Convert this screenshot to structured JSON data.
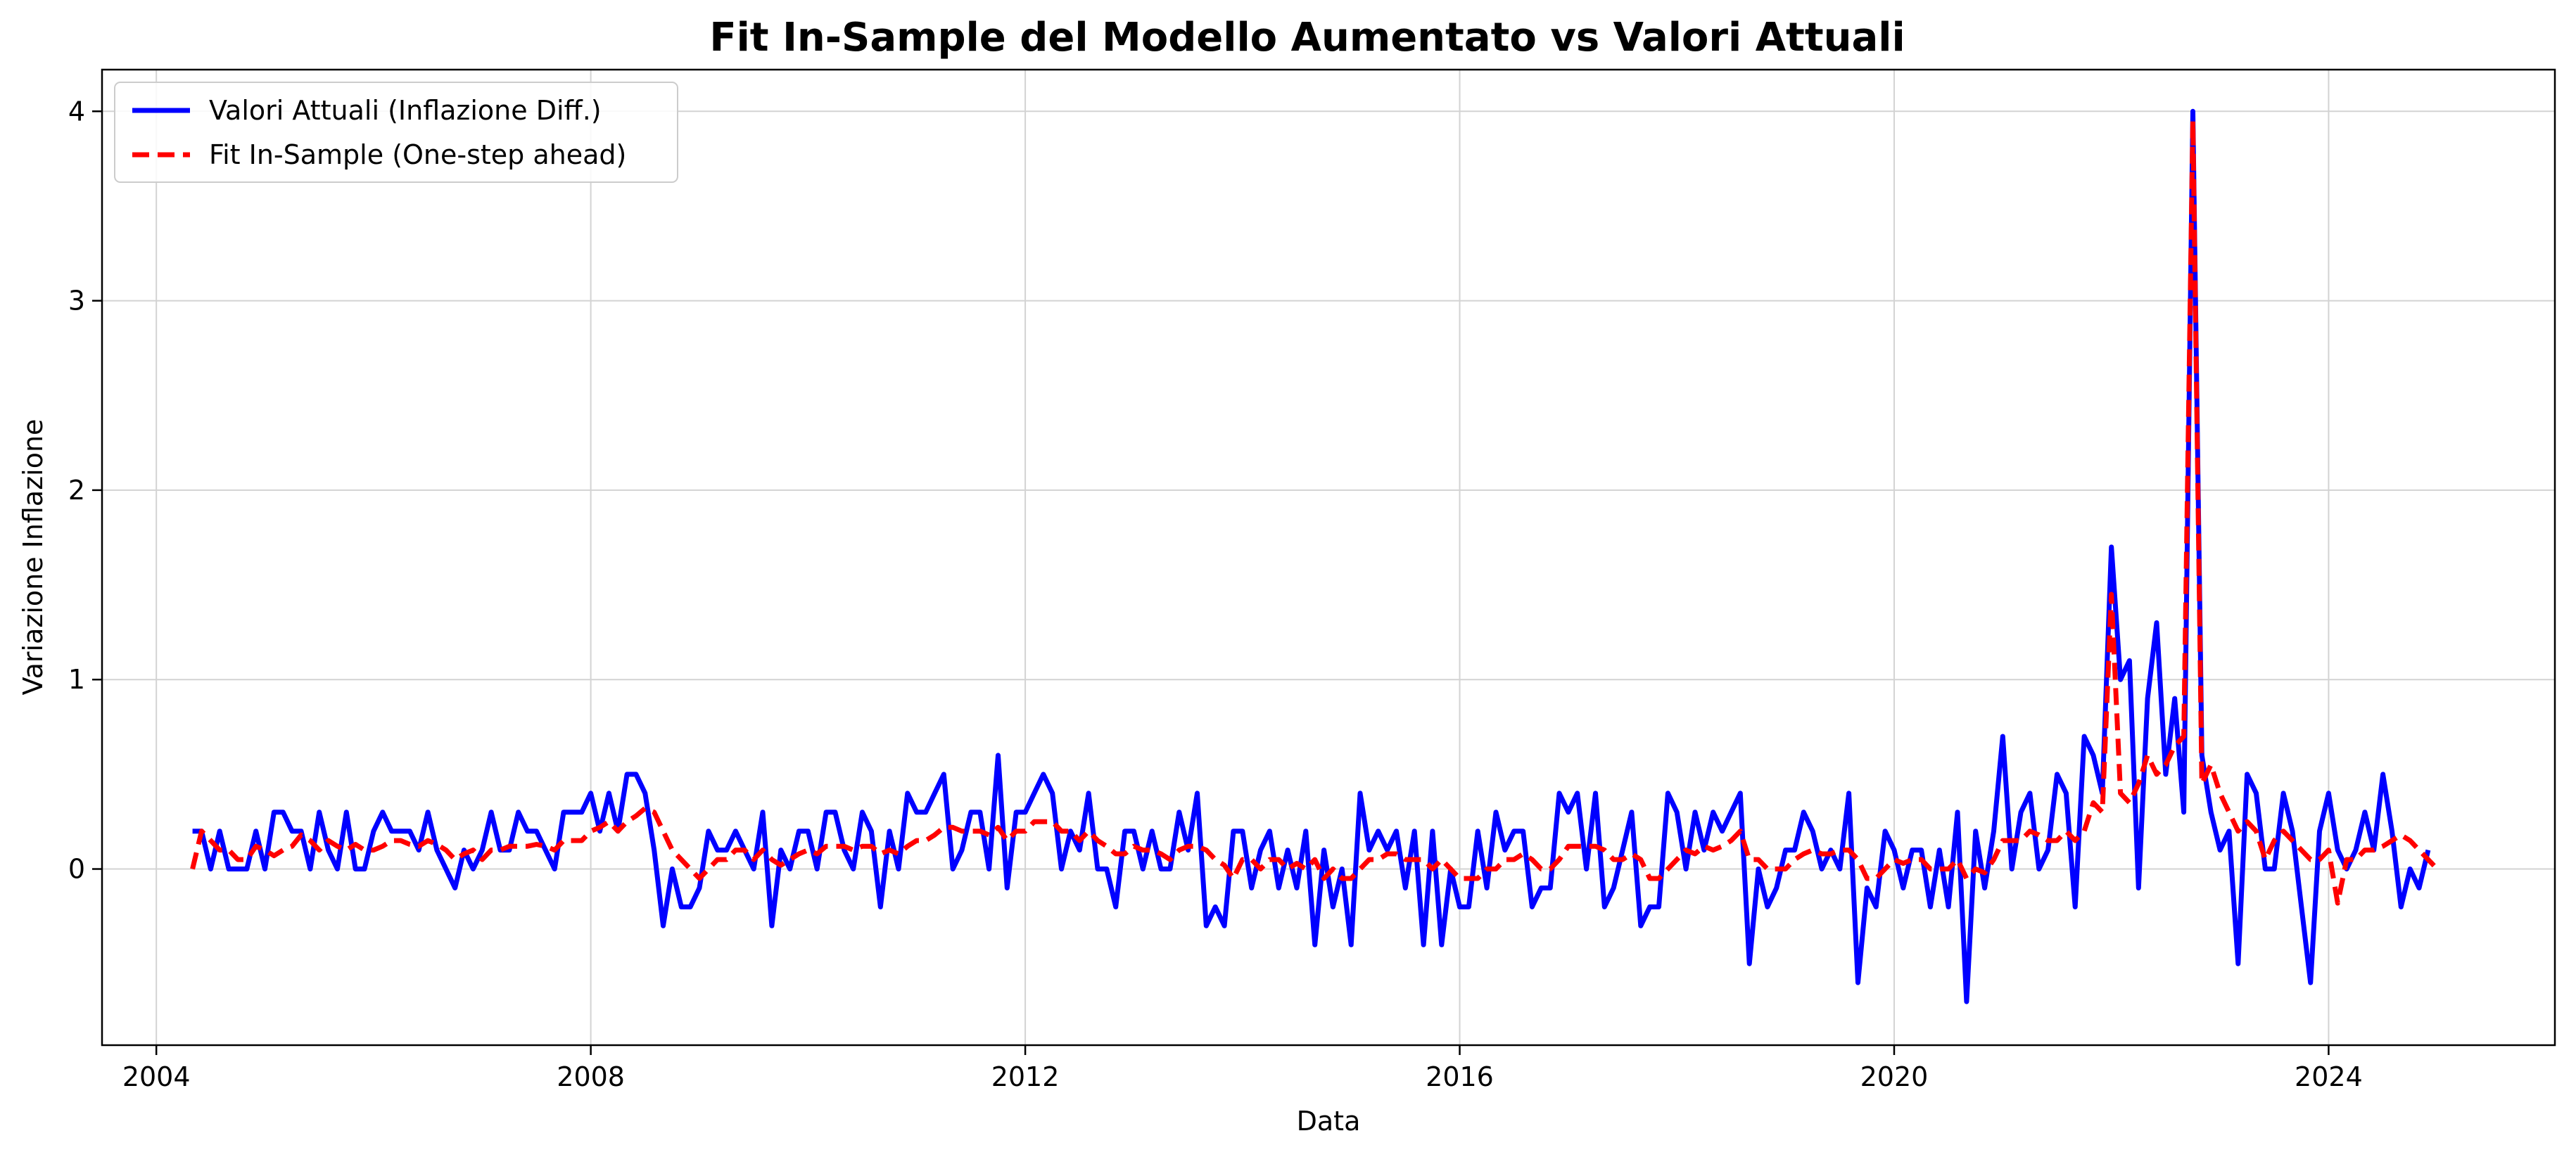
{
  "chart_data": {
    "type": "line",
    "title": "Fit In-Sample del Modello Aumentato vs Valori Attuali",
    "xlabel": "Data",
    "ylabel": "Variazione Inflazione",
    "x_ticks": [
      "2004",
      "2008",
      "2012",
      "2016",
      "2020",
      "2024"
    ],
    "y_ticks": [
      "0",
      "1",
      "2",
      "3",
      "4"
    ],
    "x_range": [
      "2003-07",
      "2026-02"
    ],
    "ylim": [
      -0.93,
      4.22
    ],
    "grid": true,
    "legend_position": "top-left",
    "x_start": "2004-05",
    "x_step": "month",
    "series": [
      {
        "name": "Valori Attuali (Inflazione Diff.)",
        "color": "#0000ff",
        "style": "solid",
        "values": [
          0.2,
          0.2,
          0.0,
          0.2,
          0.0,
          0.0,
          0.0,
          0.2,
          0.0,
          0.3,
          0.3,
          0.2,
          0.2,
          0.0,
          0.3,
          0.1,
          0.0,
          0.3,
          0.0,
          0.0,
          0.2,
          0.3,
          0.2,
          0.2,
          0.2,
          0.1,
          0.3,
          0.1,
          0.0,
          -0.1,
          0.1,
          0.0,
          0.1,
          0.3,
          0.1,
          0.1,
          0.3,
          0.2,
          0.2,
          0.1,
          0.0,
          0.3,
          0.3,
          0.3,
          0.4,
          0.2,
          0.4,
          0.2,
          0.5,
          0.5,
          0.4,
          0.1,
          -0.3,
          0.0,
          -0.2,
          -0.2,
          -0.1,
          0.2,
          0.1,
          0.1,
          0.2,
          0.1,
          0.0,
          0.3,
          -0.3,
          0.1,
          0.0,
          0.2,
          0.2,
          0.0,
          0.3,
          0.3,
          0.1,
          0.0,
          0.3,
          0.2,
          -0.2,
          0.2,
          0.0,
          0.4,
          0.3,
          0.3,
          0.4,
          0.5,
          0.0,
          0.1,
          0.3,
          0.3,
          0.0,
          0.6,
          -0.1,
          0.3,
          0.3,
          0.4,
          0.5,
          0.4,
          0.0,
          0.2,
          0.1,
          0.4,
          0.0,
          0.0,
          -0.2,
          0.2,
          0.2,
          0.0,
          0.2,
          0.0,
          0.0,
          0.3,
          0.1,
          0.4,
          -0.3,
          -0.2,
          -0.3,
          0.2,
          0.2,
          -0.1,
          0.1,
          0.2,
          -0.1,
          0.1,
          -0.1,
          0.2,
          -0.4,
          0.1,
          -0.2,
          0.0,
          -0.4,
          0.4,
          0.1,
          0.2,
          0.1,
          0.2,
          -0.1,
          0.2,
          -0.4,
          0.2,
          -0.4,
          0.0,
          -0.2,
          -0.2,
          0.2,
          -0.1,
          0.3,
          0.1,
          0.2,
          0.2,
          -0.2,
          -0.1,
          -0.1,
          0.4,
          0.3,
          0.4,
          0.0,
          0.4,
          -0.2,
          -0.1,
          0.1,
          0.3,
          -0.3,
          -0.2,
          -0.2,
          0.4,
          0.3,
          0.0,
          0.3,
          0.1,
          0.3,
          0.2,
          0.3,
          0.4,
          -0.5,
          0.0,
          -0.2,
          -0.1,
          0.1,
          0.1,
          0.3,
          0.2,
          0.0,
          0.1,
          0.0,
          0.4,
          -0.6,
          -0.1,
          -0.2,
          0.2,
          0.1,
          -0.1,
          0.1,
          0.1,
          -0.2,
          0.1,
          -0.2,
          0.3,
          -0.7,
          0.2,
          -0.1,
          0.2,
          0.7,
          0.0,
          0.3,
          0.4,
          0.0,
          0.1,
          0.5,
          0.4,
          -0.2,
          0.7,
          0.6,
          0.4,
          1.7,
          1.0,
          1.1,
          -0.1,
          0.9,
          1.3,
          0.5,
          0.9,
          0.3,
          4.0,
          0.6,
          0.3,
          0.1,
          0.2,
          -0.5,
          0.5,
          0.4,
          0.0,
          0.0,
          0.4,
          0.2,
          -0.2,
          -0.6,
          0.2,
          0.4,
          0.1,
          0.0,
          0.1,
          0.3,
          0.1,
          0.5,
          0.2,
          -0.2,
          0.0,
          -0.1,
          0.1
        ]
      },
      {
        "name": "Fit In-Sample (One-step ahead)",
        "color": "#ff0000",
        "style": "dashed",
        "values": [
          0.0,
          0.2,
          0.15,
          0.1,
          0.1,
          0.05,
          0.05,
          0.12,
          0.1,
          0.07,
          0.1,
          0.12,
          0.18,
          0.15,
          0.1,
          0.15,
          0.12,
          0.1,
          0.13,
          0.1,
          0.1,
          0.12,
          0.15,
          0.15,
          0.13,
          0.12,
          0.15,
          0.13,
          0.1,
          0.05,
          0.08,
          0.1,
          0.05,
          0.1,
          0.1,
          0.12,
          0.12,
          0.12,
          0.13,
          0.12,
          0.1,
          0.15,
          0.15,
          0.15,
          0.2,
          0.22,
          0.25,
          0.2,
          0.25,
          0.28,
          0.32,
          0.3,
          0.2,
          0.1,
          0.05,
          0.0,
          -0.05,
          0.0,
          0.05,
          0.05,
          0.1,
          0.1,
          0.05,
          0.1,
          0.05,
          0.02,
          0.05,
          0.08,
          0.1,
          0.08,
          0.12,
          0.12,
          0.12,
          0.1,
          0.12,
          0.12,
          0.08,
          0.1,
          0.08,
          0.12,
          0.15,
          0.15,
          0.18,
          0.22,
          0.22,
          0.2,
          0.2,
          0.2,
          0.18,
          0.22,
          0.15,
          0.2,
          0.2,
          0.25,
          0.25,
          0.25,
          0.2,
          0.2,
          0.15,
          0.2,
          0.15,
          0.12,
          0.08,
          0.08,
          0.12,
          0.1,
          0.1,
          0.08,
          0.05,
          0.1,
          0.12,
          0.12,
          0.1,
          0.05,
          0.02,
          -0.05,
          0.05,
          0.05,
          0.0,
          0.05,
          0.05,
          0.0,
          0.03,
          0.0,
          0.05,
          -0.05,
          0.0,
          -0.05,
          -0.05,
          0.0,
          0.05,
          0.05,
          0.08,
          0.08,
          0.05,
          0.05,
          0.05,
          0.0,
          0.05,
          0.0,
          -0.05,
          -0.05,
          -0.05,
          0.0,
          0.0,
          0.05,
          0.05,
          0.08,
          0.05,
          0.0,
          0.0,
          0.05,
          0.12,
          0.12,
          0.12,
          0.12,
          0.1,
          0.05,
          0.05,
          0.08,
          0.05,
          -0.05,
          -0.05,
          0.0,
          0.05,
          0.1,
          0.08,
          0.12,
          0.1,
          0.12,
          0.15,
          0.2,
          0.05,
          0.05,
          0.0,
          0.0,
          0.0,
          0.05,
          0.08,
          0.1,
          0.08,
          0.08,
          0.1,
          0.1,
          0.05,
          -0.05,
          -0.05,
          0.0,
          0.05,
          0.03,
          0.05,
          0.05,
          0.0,
          0.0,
          0.0,
          0.05,
          -0.05,
          0.0,
          -0.02,
          0.05,
          0.15,
          0.15,
          0.15,
          0.2,
          0.18,
          0.15,
          0.15,
          0.2,
          0.15,
          0.2,
          0.35,
          0.3,
          1.45,
          0.4,
          0.35,
          0.45,
          0.6,
          0.5,
          0.55,
          0.65,
          0.7,
          3.95,
          0.45,
          0.55,
          0.4,
          0.3,
          0.2,
          0.25,
          0.2,
          0.05,
          0.15,
          0.2,
          0.15,
          0.1,
          0.05,
          0.05,
          0.1,
          -0.18,
          0.05,
          0.05,
          0.1,
          0.1,
          0.12,
          0.15,
          0.18,
          0.15,
          0.1,
          0.05,
          0.0
        ]
      }
    ]
  }
}
